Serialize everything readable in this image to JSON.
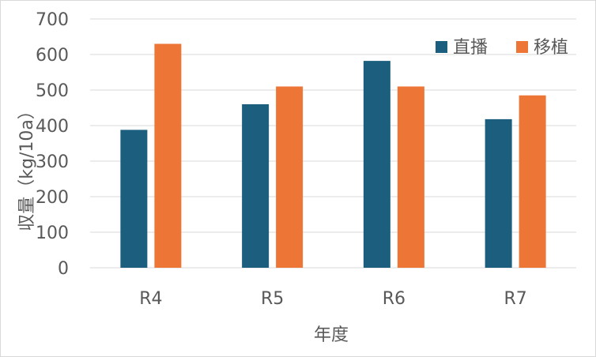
{
  "chart_data": {
    "type": "bar",
    "categories": [
      "R4",
      "R5",
      "R6",
      "R7"
    ],
    "series": [
      {
        "name": "直播",
        "values": [
          388,
          460,
          582,
          418
        ],
        "color": "#1b5e7e"
      },
      {
        "name": "移植",
        "values": [
          630,
          510,
          510,
          485
        ],
        "color": "#ed7637"
      }
    ],
    "xlabel": "年度",
    "ylabel": "収量（kg/10a）",
    "ylim": [
      0,
      700
    ],
    "yticks": [
      0,
      100,
      200,
      300,
      400,
      500,
      600,
      700
    ],
    "grid": true,
    "legend_position": "top-right",
    "gridline_color": "#d9d9d9",
    "text_color": "#595959"
  }
}
